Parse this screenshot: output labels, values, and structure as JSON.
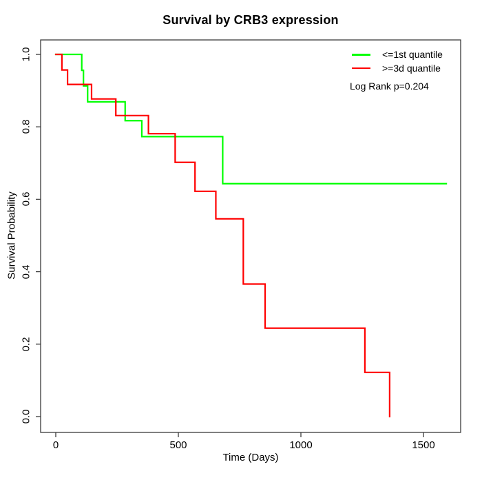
{
  "title": "Survival by CRB3 expression",
  "axes": {
    "xlabel": "Time (Days)",
    "ylabel": "Survival Probability",
    "x_tick_labels": [
      "0",
      "500",
      "1000",
      "1500"
    ],
    "x_tick_values": [
      0,
      500,
      1000,
      1500
    ],
    "y_tick_labels": [
      "0.0",
      "0.2",
      "0.4",
      "0.6",
      "0.8",
      "1.0"
    ],
    "y_tick_values": [
      0.0,
      0.2,
      0.4,
      0.6,
      0.8,
      1.0
    ]
  },
  "legend": {
    "items": [
      {
        "label": "<=1st quantile",
        "color": "#00ff00"
      },
      {
        "label": ">=3d quantile",
        "color": "#ff0000"
      }
    ],
    "note": "Log Rank p=0.204"
  },
  "chart_data": {
    "type": "line",
    "subtype": "kaplan-meier-step",
    "title": "Survival by CRB3 expression",
    "xlabel": "Time (Days)",
    "ylabel": "Survival Probability",
    "xlim": [
      -60,
      1650
    ],
    "ylim": [
      0.0,
      1.0
    ],
    "grid": false,
    "legend_position": "top-right-inside",
    "annotation": "Log Rank p=0.204",
    "series": [
      {
        "name": "<=1st quantile",
        "color": "#00ff00",
        "steps": [
          [
            0,
            1.0
          ],
          [
            106,
            0.956
          ],
          [
            113,
            0.913
          ],
          [
            130,
            0.869
          ],
          [
            283,
            0.817
          ],
          [
            351,
            0.773
          ],
          [
            681,
            0.643
          ]
        ],
        "end_time": 1593
      },
      {
        "name": ">=3d quantile",
        "color": "#ff0000",
        "steps": [
          [
            0,
            1.0
          ],
          [
            25,
            0.957
          ],
          [
            48,
            0.917
          ],
          [
            146,
            0.877
          ],
          [
            245,
            0.831
          ],
          [
            378,
            0.781
          ],
          [
            487,
            0.702
          ],
          [
            568,
            0.622
          ],
          [
            653,
            0.546
          ],
          [
            765,
            0.366
          ],
          [
            854,
            0.244
          ],
          [
            1261,
            0.122
          ],
          [
            1362,
            0.0
          ]
        ],
        "end_time": 1362
      }
    ]
  }
}
